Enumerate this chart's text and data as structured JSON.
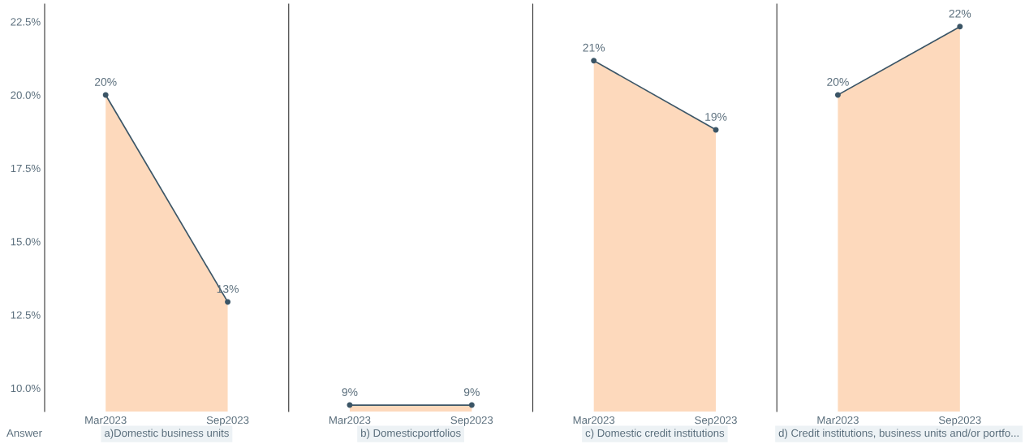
{
  "chart_data": [
    {
      "type": "line",
      "title": "a)Domestic business units",
      "categories": [
        "Mar2023",
        "Sep2023"
      ],
      "ylim": [
        9.2,
        23.1
      ],
      "yticks": [
        {
          "value": 10.0,
          "label": "10.0%"
        },
        {
          "value": 12.5,
          "label": "12.5%"
        },
        {
          "value": 15.0,
          "label": "15.0%"
        },
        {
          "value": 17.5,
          "label": "17.5%"
        },
        {
          "value": 20.0,
          "label": "20.0%"
        },
        {
          "value": 22.5,
          "label": "22.5%"
        }
      ],
      "annotations": [
        "Answer"
      ],
      "series": [
        {
          "type": "area",
          "color": "#fdd9bc",
          "values": [
            20.0,
            12.94
          ]
        },
        {
          "color": "#3b5566",
          "marker": "circle",
          "values": [
            20.0,
            12.94
          ],
          "value_labels": [
            "20%",
            "13%"
          ]
        }
      ]
    },
    {
      "type": "line",
      "title": "b) Domesticportfolios",
      "categories": [
        "Mar2023",
        "Sep2023"
      ],
      "ylim": [
        9.2,
        23.1
      ],
      "tick_labels": "x",
      "series": [
        {
          "type": "area",
          "color": "#fdd9bc",
          "values": [
            9.42,
            9.42
          ]
        },
        {
          "color": "#3b5566",
          "marker": "circle",
          "values": [
            9.42,
            9.42
          ],
          "value_labels": [
            "9%",
            "9%"
          ]
        }
      ]
    },
    {
      "type": "line",
      "title": "c) Domestic credit institutions",
      "categories": [
        "Mar2023",
        "Sep2023"
      ],
      "ylim": [
        9.2,
        23.1
      ],
      "tick_labels": "x",
      "series": [
        {
          "type": "area",
          "color": "#fdd9bc",
          "values": [
            21.17,
            18.81
          ]
        },
        {
          "color": "#3b5566",
          "marker": "circle",
          "values": [
            21.17,
            18.81
          ],
          "value_labels": [
            "21%",
            "19%"
          ]
        }
      ]
    },
    {
      "type": "line",
      "title": "d) Credit institutions, business units and/or portfo...",
      "categories": [
        "Mar2023",
        "Sep2023"
      ],
      "ylim": [
        9.2,
        23.1
      ],
      "tick_labels": "x",
      "series": [
        {
          "type": "area",
          "color": "#fdd9bc",
          "values": [
            20.0,
            22.33
          ]
        },
        {
          "color": "#3b5566",
          "marker": "circle",
          "values": [
            20.0,
            22.33
          ],
          "value_labels": [
            "20%",
            "22%"
          ]
        }
      ]
    }
  ]
}
